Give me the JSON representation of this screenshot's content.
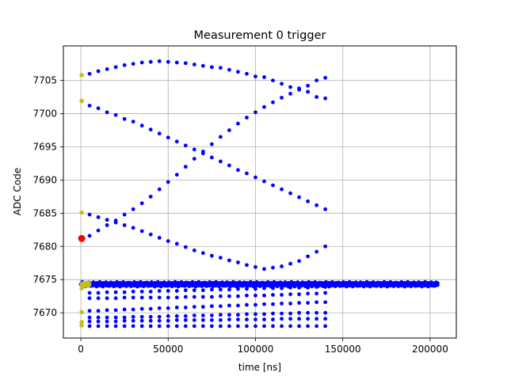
{
  "chart_data": {
    "type": "scatter",
    "title": "Measurement 0 trigger",
    "xlabel": "time [ns]",
    "ylabel": "ADC Code",
    "xlim": [
      -10000,
      215000
    ],
    "ylim": [
      7666.2,
      7710.2
    ],
    "xticks": [
      0,
      50000,
      100000,
      150000,
      200000
    ],
    "yticks": [
      7670,
      7675,
      7680,
      7685,
      7690,
      7695,
      7700,
      7705
    ],
    "grid": true,
    "colors": {
      "main": "#0000ff",
      "early": "#bfbf1f",
      "marker": "#ff0000"
    },
    "series": [
      {
        "color": "main",
        "curves": [
          {
            "x": [
              5000,
              10000,
              15000,
              20000,
              25000,
              30000,
              35000,
              40000,
              45000,
              50000,
              55000,
              60000,
              65000,
              70000,
              75000,
              80000,
              85000,
              90000,
              95000,
              100000,
              105000,
              110000,
              115000,
              120000,
              125000,
              130000,
              135000,
              140000
            ],
            "y": [
              7706.0,
              7706.4,
              7706.7,
              7707.0,
              7707.3,
              7707.5,
              7707.7,
              7707.8,
              7707.9,
              7707.8,
              7707.7,
              7707.6,
              7707.4,
              7707.2,
              7707.0,
              7706.9,
              7706.6,
              7706.3,
              7706.0,
              7705.6,
              7705.5,
              7705.0,
              7704.5,
              7704.0,
              7703.8,
              7703.3,
              7702.5,
              7702.3
            ]
          },
          {
            "x": [
              5000,
              10000,
              15000,
              20000,
              25000,
              30000,
              35000,
              40000,
              45000,
              50000,
              55000,
              60000,
              65000,
              70000,
              75000,
              80000,
              85000,
              90000,
              95000,
              100000,
              105000,
              110000,
              115000,
              120000,
              125000,
              130000,
              135000,
              140000
            ],
            "y": [
              7701.2,
              7700.8,
              7700.2,
              7699.8,
              7699.2,
              7698.8,
              7698.2,
              7697.6,
              7697.0,
              7696.4,
              7695.8,
              7695.2,
              7694.6,
              7694.0,
              7693.4,
              7692.8,
              7692.2,
              7691.5,
              7691.0,
              7690.4,
              7689.8,
              7689.2,
              7688.6,
              7688.0,
              7687.4,
              7686.8,
              7686.2,
              7685.6
            ]
          },
          {
            "x": [
              5000,
              10000,
              15000,
              20000,
              25000,
              30000,
              35000,
              40000,
              45000,
              50000,
              55000,
              60000,
              65000,
              70000,
              75000,
              80000,
              85000,
              90000,
              95000,
              100000,
              105000,
              110000,
              115000,
              120000,
              125000,
              130000,
              135000,
              140000
            ],
            "y": [
              7681.6,
              7682.4,
              7683.2,
              7683.9,
              7684.8,
              7685.6,
              7686.5,
              7687.5,
              7688.6,
              7689.7,
              7690.8,
              7692.0,
              7693.2,
              7694.3,
              7695.4,
              7696.5,
              7697.5,
              7698.5,
              7699.4,
              7700.2,
              7701.0,
              7701.7,
              7702.4,
              7703.0,
              7703.6,
              7704.2,
              7705.0,
              7705.4
            ]
          },
          {
            "x": [
              5000,
              10000,
              15000,
              20000,
              25000,
              30000,
              35000,
              40000,
              45000,
              50000,
              55000,
              60000,
              65000,
              70000,
              75000,
              80000,
              85000,
              90000,
              95000,
              100000,
              105000,
              110000,
              115000,
              120000,
              125000,
              130000,
              135000,
              140000
            ],
            "y": [
              7684.8,
              7684.4,
              7684.0,
              7683.6,
              7683.2,
              7682.8,
              7682.3,
              7681.8,
              7681.3,
              7680.8,
              7680.4,
              7679.9,
              7679.4,
              7679.0,
              7678.6,
              7678.3,
              7677.9,
              7677.6,
              7677.2,
              7676.9,
              7676.6,
              7676.8,
              7677.0,
              7677.4,
              7677.8,
              7678.5,
              7679.2,
              7680.0
            ]
          },
          {
            "x": [
              5000,
              10000,
              15000,
              20000,
              25000,
              30000,
              35000,
              40000,
              45000,
              50000,
              55000,
              60000,
              65000,
              70000,
              75000,
              80000,
              85000,
              90000,
              95000,
              100000,
              105000,
              110000,
              115000,
              120000,
              125000,
              130000,
              135000,
              140000
            ],
            "y": [
              7673.0,
              7673.0,
              7673.1,
              7673.1,
              7673.1,
              7673.2,
              7673.2,
              7673.2,
              7673.3,
              7673.3,
              7673.3,
              7673.4,
              7673.4,
              7673.4,
              7673.5,
              7673.5,
              7673.5,
              7673.6,
              7673.6,
              7673.6,
              7673.7,
              7673.7,
              7673.7,
              7673.8,
              7673.8,
              7673.8,
              7673.9,
              7673.9
            ]
          },
          {
            "x": [
              5000,
              10000,
              15000,
              20000,
              25000,
              30000,
              35000,
              40000,
              45000,
              50000,
              55000,
              60000,
              65000,
              70000,
              75000,
              80000,
              85000,
              90000,
              95000,
              100000,
              105000,
              110000,
              115000,
              120000,
              125000,
              130000,
              135000,
              140000
            ],
            "y": [
              7672.2,
              7672.2,
              7672.2,
              7672.2,
              7672.3,
              7672.3,
              7672.3,
              7672.3,
              7672.3,
              7672.3,
              7672.3,
              7672.4,
              7672.4,
              7672.4,
              7672.4,
              7672.5,
              7672.5,
              7672.5,
              7672.6,
              7672.6,
              7672.6,
              7672.7,
              7672.7,
              7672.8,
              7672.8,
              7672.9,
              7672.9,
              7673.0
            ]
          },
          {
            "x": [
              5000,
              10000,
              15000,
              20000,
              25000,
              30000,
              35000,
              40000,
              45000,
              50000,
              55000,
              60000,
              65000,
              70000,
              75000,
              80000,
              85000,
              90000,
              95000,
              100000,
              105000,
              110000,
              115000,
              120000,
              125000,
              130000,
              135000,
              140000
            ],
            "y": [
              7670.3,
              7670.3,
              7670.4,
              7670.4,
              7670.5,
              7670.5,
              7670.6,
              7670.6,
              7670.7,
              7670.7,
              7670.8,
              7670.8,
              7670.9,
              7670.9,
              7671.0,
              7671.0,
              7671.1,
              7671.1,
              7671.2,
              7671.2,
              7671.3,
              7671.3,
              7671.4,
              7671.4,
              7671.5,
              7671.5,
              7671.6,
              7671.6
            ]
          },
          {
            "x": [
              5000,
              10000,
              15000,
              20000,
              25000,
              30000,
              35000,
              40000,
              45000,
              50000,
              55000,
              60000,
              65000,
              70000,
              75000,
              80000,
              85000,
              90000,
              95000,
              100000,
              105000,
              110000,
              115000,
              120000,
              125000,
              130000,
              135000,
              140000
            ],
            "y": [
              7669.3,
              7669.3,
              7669.3,
              7669.3,
              7669.3,
              7669.4,
              7669.4,
              7669.4,
              7669.4,
              7669.5,
              7669.5,
              7669.5,
              7669.6,
              7669.6,
              7669.6,
              7669.7,
              7669.7,
              7669.7,
              7669.8,
              7669.8,
              7669.8,
              7669.9,
              7669.9,
              7669.9,
              7670.0,
              7670.0,
              7670.0,
              7670.0
            ]
          },
          {
            "x": [
              5000,
              10000,
              15000,
              20000,
              25000,
              30000,
              35000,
              40000,
              45000,
              50000,
              55000,
              60000,
              65000,
              70000,
              75000,
              80000,
              85000,
              90000,
              95000,
              100000,
              105000,
              110000,
              115000,
              120000,
              125000,
              130000,
              135000,
              140000
            ],
            "y": [
              7668.7,
              7668.7,
              7668.7,
              7668.7,
              7668.8,
              7668.8,
              7668.8,
              7668.8,
              7668.8,
              7668.8,
              7668.9,
              7668.9,
              7668.9,
              7668.9,
              7668.9,
              7668.9,
              7669.0,
              7669.0,
              7669.0,
              7669.0,
              7669.0,
              7669.0,
              7669.1,
              7669.1,
              7669.1,
              7669.1,
              7669.1,
              7669.1
            ]
          },
          {
            "x": [
              5000,
              10000,
              15000,
              20000,
              25000,
              30000,
              35000,
              40000,
              45000,
              50000,
              55000,
              60000,
              65000,
              70000,
              75000,
              80000,
              85000,
              90000,
              95000,
              100000,
              105000,
              110000,
              115000,
              120000,
              125000,
              130000,
              135000,
              140000
            ],
            "y": [
              7668.0,
              7668.0,
              7668.0,
              7668.0,
              7668.0,
              7668.0,
              7668.0,
              7668.0,
              7668.0,
              7668.0,
              7668.0,
              7668.0,
              7668.0,
              7668.0,
              7668.0,
              7668.0,
              7668.0,
              7668.0,
              7668.0,
              7668.0,
              7668.0,
              7668.0,
              7668.0,
              7668.0,
              7668.0,
              7668.0,
              7668.0,
              7668.0
            ]
          }
        ],
        "band": {
          "x_start": 0,
          "x_end": 205000,
          "y_center": 7674.3,
          "y_spread": 0.35
        }
      },
      {
        "color": "early",
        "x": [
          500,
          500,
          500,
          500,
          500,
          500,
          500,
          500
        ],
        "y": [
          7705.8,
          7701.9,
          7685.1,
          7674.3,
          7673.7,
          7670.1,
          7668.6,
          7668.1
        ]
      },
      {
        "color": "early",
        "x": [
          2000,
          3000,
          4000
        ],
        "y": [
          7674.3,
          7674.3,
          7674.3
        ]
      },
      {
        "color": "marker",
        "x": [
          500
        ],
        "y": [
          7681.2
        ]
      }
    ]
  }
}
